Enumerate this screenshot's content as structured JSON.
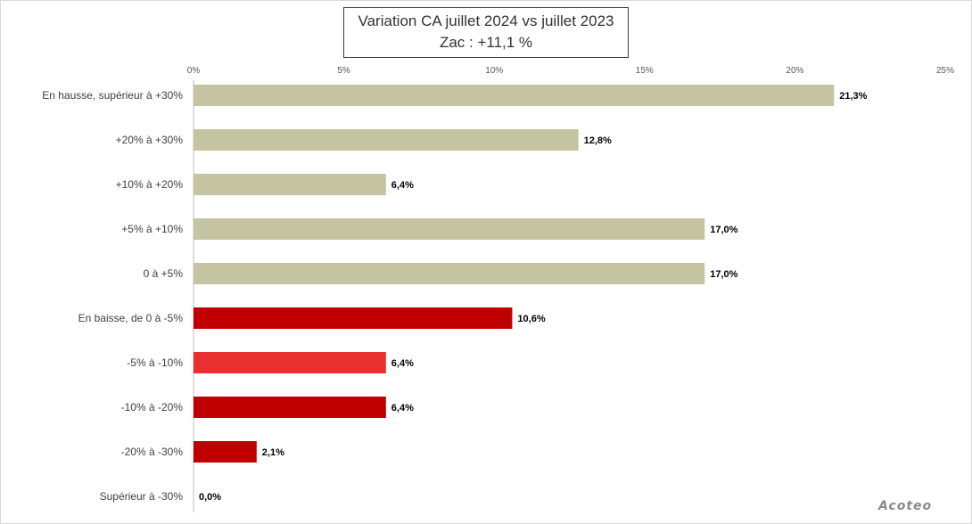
{
  "chart_data": {
    "type": "bar",
    "orientation": "horizontal",
    "title": "Variation CA juillet 2024 vs juillet 2023",
    "subtitle": "Zac : +11,1 %",
    "xlim": [
      0,
      25
    ],
    "xticks": [
      "0%",
      "5%",
      "10%",
      "15%",
      "20%",
      "25%"
    ],
    "categories": [
      "En hausse, supérieur à +30%",
      "+20% à +30%",
      "+10% à +20%",
      "+5% à +10%",
      "0 à +5%",
      "En baisse, de 0 à -5%",
      "-5% à -10%",
      "-10% à -20%",
      "-20% à -30%",
      "Supérieur à -30%"
    ],
    "values": [
      21.3,
      12.8,
      6.4,
      17.0,
      17.0,
      10.6,
      6.4,
      6.4,
      2.1,
      0.0
    ],
    "value_labels": [
      "21,3%",
      "12,8%",
      "6,4%",
      "17,0%",
      "17,0%",
      "10,6%",
      "6,4%",
      "6,4%",
      "2,1%",
      "0,0%"
    ],
    "colors": [
      "#c4c4a0",
      "#c4c4a0",
      "#c4c4a0",
      "#c4c4a0",
      "#c4c4a0",
      "#c00000",
      "#e83030",
      "#c00000",
      "#c00000",
      "#c00000"
    ],
    "grid": false,
    "legend": "none"
  },
  "watermark": "Acoteo"
}
